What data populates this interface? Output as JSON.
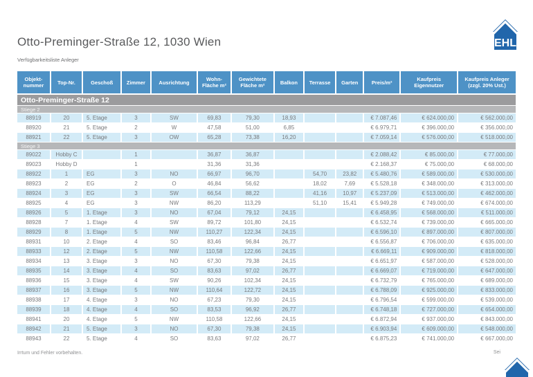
{
  "page": {
    "title": "Otto-Preminger-Straße 12, 1030 Wien",
    "subtitle": "Verfügbarkeitsliste Anleger",
    "footer_left": "Irrtum und Fehler vorbehalten.",
    "footer_right": "Sei",
    "logo_text": "EHL"
  },
  "colors": {
    "header_blue": "#4e92c6",
    "row_blue": "#d3ebf7",
    "group_gray": "#9b9b9d",
    "section_gray": "#b6b7b9",
    "logo_blue": "#2166ab",
    "data_text": "#77787b"
  },
  "table": {
    "group_header": "Otto-Preminger-Straße 12",
    "columns": [
      "Objekt-nummer",
      "Top-Nr.",
      "Geschoß",
      "Zimmer",
      "Ausrichtung",
      "Wohn-Fläche m²",
      "Gewichtete Fläche m²",
      "Balkon",
      "Terrasse",
      "Garten",
      "Preis/m²",
      "Kaufpreis Eigennutzer",
      "Kaufpreis Anleger (zzgl. 20% Ust.)"
    ],
    "sections": [
      {
        "label": "Stiege 2",
        "rows": [
          [
            "88919",
            "20",
            "5. Etage",
            "3",
            "SW",
            "69,83",
            "79,30",
            "18,93",
            "",
            "",
            "€ 7.087,46",
            "€ 624.000,00",
            "€ 562.000,00"
          ],
          [
            "88920",
            "21",
            "5. Etage",
            "2",
            "W",
            "47,58",
            "51,00",
            "6,85",
            "",
            "",
            "€ 6.979,71",
            "€ 396.000,00",
            "€ 356.000,00"
          ],
          [
            "88921",
            "22",
            "5. Etage",
            "3",
            "OW",
            "65,28",
            "73,38",
            "16,20",
            "",
            "",
            "€ 7.059,14",
            "€ 576.000,00",
            "€ 518.000,00"
          ]
        ]
      },
      {
        "label": "Stiege 3",
        "rows": [
          [
            "89022",
            "Hobby C",
            "",
            "1",
            "",
            "36,87",
            "36,87",
            "",
            "",
            "",
            "€ 2.088,42",
            "€ 85.000,00",
            "€ 77.000,00"
          ],
          [
            "89023",
            "Hobby D",
            "",
            "1",
            "",
            "31,36",
            "31,36",
            "",
            "",
            "",
            "€ 2.168,37",
            "€ 75.000,00",
            "€ 68.000,00"
          ],
          [
            "88922",
            "1",
            "EG",
            "3",
            "NO",
            "66,97",
            "96,70",
            "",
            "54,70",
            "23,82",
            "€ 5.480,76",
            "€ 589.000,00",
            "€ 530.000,00"
          ],
          [
            "88923",
            "2",
            "EG",
            "2",
            "O",
            "46,84",
            "56,62",
            "",
            "18,02",
            "7,69",
            "€ 5.528,18",
            "€ 348.000,00",
            "€ 313.000,00"
          ],
          [
            "88924",
            "3",
            "EG",
            "3",
            "SW",
            "66,54",
            "88,22",
            "",
            "41,16",
            "10,97",
            "€ 5.237,09",
            "€ 513.000,00",
            "€ 462.000,00"
          ],
          [
            "88925",
            "4",
            "EG",
            "3",
            "NW",
            "86,20",
            "113,29",
            "",
            "51,10",
            "15,41",
            "€ 5.949,28",
            "€ 749.000,00",
            "€ 674.000,00"
          ],
          [
            "88926",
            "5",
            "1. Etage",
            "3",
            "NO",
            "67,04",
            "79,12",
            "24,15",
            "",
            "",
            "€ 6.458,95",
            "€ 568.000,00",
            "€ 511.000,00"
          ],
          [
            "88928",
            "7",
            "1. Etage",
            "4",
            "SW",
            "89,72",
            "101,80",
            "24,15",
            "",
            "",
            "€ 6.532,74",
            "€ 739.000,00",
            "€ 665.000,00"
          ],
          [
            "88929",
            "8",
            "1. Etage",
            "5",
            "NW",
            "110,27",
            "122,34",
            "24,15",
            "",
            "",
            "€ 6.596,10",
            "€ 897.000,00",
            "€ 807.000,00"
          ],
          [
            "88931",
            "10",
            "2. Etage",
            "4",
            "SO",
            "83,46",
            "96,84",
            "26,77",
            "",
            "",
            "€ 6.556,87",
            "€ 706.000,00",
            "€ 635.000,00"
          ],
          [
            "88933",
            "12",
            "2. Etage",
            "5",
            "NW",
            "110,58",
            "122,66",
            "24,15",
            "",
            "",
            "€ 6.669,11",
            "€ 909.000,00",
            "€ 818.000,00"
          ],
          [
            "88934",
            "13",
            "3. Etage",
            "3",
            "NO",
            "67,30",
            "79,38",
            "24,15",
            "",
            "",
            "€ 6.651,97",
            "€ 587.000,00",
            "€ 528.000,00"
          ],
          [
            "88935",
            "14",
            "3. Etage",
            "4",
            "SO",
            "83,63",
            "97,02",
            "26,77",
            "",
            "",
            "€ 6.669,07",
            "€ 719.000,00",
            "€ 647.000,00"
          ],
          [
            "88936",
            "15",
            "3. Etage",
            "4",
            "SW",
            "90,26",
            "102,34",
            "24,15",
            "",
            "",
            "€ 6.732,79",
            "€ 765.000,00",
            "€ 689.000,00"
          ],
          [
            "88937",
            "16",
            "3. Etage",
            "5",
            "NW",
            "110,64",
            "122,72",
            "24,15",
            "",
            "",
            "€ 6.788,09",
            "€ 925.000,00",
            "€ 833.000,00"
          ],
          [
            "88938",
            "17",
            "4. Etage",
            "3",
            "NO",
            "67,23",
            "79,30",
            "24,15",
            "",
            "",
            "€ 6.796,54",
            "€ 599.000,00",
            "€ 539.000,00"
          ],
          [
            "88939",
            "18",
            "4. Etage",
            "4",
            "SO",
            "83,53",
            "96,92",
            "26,77",
            "",
            "",
            "€ 6.748,18",
            "€ 727.000,00",
            "€ 654.000,00"
          ],
          [
            "88941",
            "20",
            "4. Etage",
            "5",
            "NW",
            "110,58",
            "122,66",
            "24,15",
            "",
            "",
            "€ 6.872,94",
            "€ 937.000,00",
            "€ 843.000,00"
          ],
          [
            "88942",
            "21",
            "5. Etage",
            "3",
            "NO",
            "67,30",
            "79,38",
            "24,15",
            "",
            "",
            "€ 6.903,94",
            "€ 609.000,00",
            "€ 548.000,00"
          ],
          [
            "88943",
            "22",
            "5. Etage",
            "4",
            "SO",
            "83,63",
            "97,02",
            "26,77",
            "",
            "",
            "€ 6.875,23",
            "€ 741.000,00",
            "€ 667.000,00"
          ]
        ]
      }
    ]
  }
}
